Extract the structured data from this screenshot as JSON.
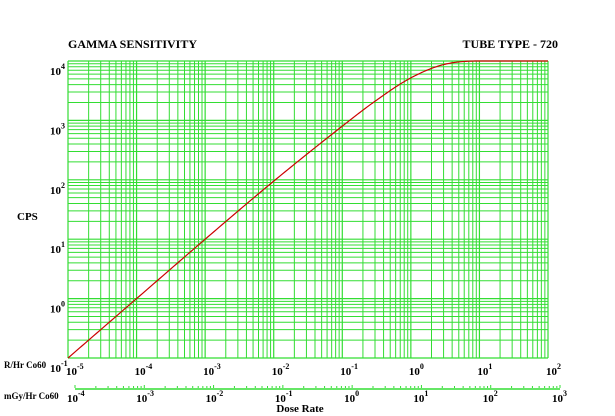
{
  "chart_data": {
    "type": "line",
    "title_left": "GAMMA SENSITIVITY",
    "title_right": "TUBE TYPE - 720",
    "ylabel": "CPS",
    "xlabel": "Dose Rate",
    "x_scale": "log",
    "y_scale": "log",
    "xlim": [
      1e-05,
      100
    ],
    "ylim": [
      0.1,
      10000
    ],
    "grid": true,
    "y_ticks": [
      {
        "base": "10",
        "exp": "4"
      },
      {
        "base": "10",
        "exp": "3"
      },
      {
        "base": "10",
        "exp": "2"
      },
      {
        "base": "10",
        "exp": "1"
      },
      {
        "base": "10",
        "exp": "0"
      },
      {
        "base": "10",
        "exp": "-1"
      }
    ],
    "x_axis_rhr": {
      "label": "R/Hr Co60",
      "ticks": [
        {
          "base": "10",
          "exp": "-5"
        },
        {
          "base": "10",
          "exp": "-4"
        },
        {
          "base": "10",
          "exp": "-3"
        },
        {
          "base": "10",
          "exp": "-2"
        },
        {
          "base": "10",
          "exp": "-1"
        },
        {
          "base": "10",
          "exp": "0"
        },
        {
          "base": "10",
          "exp": "1"
        },
        {
          "base": "10",
          "exp": "2"
        }
      ]
    },
    "x_axis_mgy": {
      "label": "mGy/Hr Co60",
      "ticks": [
        {
          "base": "10",
          "exp": "-4"
        },
        {
          "base": "10",
          "exp": "-3"
        },
        {
          "base": "10",
          "exp": "-2"
        },
        {
          "base": "10",
          "exp": "-1"
        },
        {
          "base": "10",
          "exp": "0"
        },
        {
          "base": "10",
          "exp": "1"
        },
        {
          "base": "10",
          "exp": "2"
        },
        {
          "base": "10",
          "exp": "3"
        }
      ]
    },
    "series": [
      {
        "color": "#cc0000",
        "x": [
          1e-05,
          0.0001,
          0.001,
          0.01,
          0.1,
          0.3,
          1,
          3,
          10,
          100
        ],
        "y": [
          0.1,
          1,
          10,
          95,
          800,
          2100,
          5200,
          8700,
          10000,
          10000
        ]
      }
    ],
    "colors": {
      "grid": "#33dd33",
      "curve": "#cc0000"
    }
  }
}
